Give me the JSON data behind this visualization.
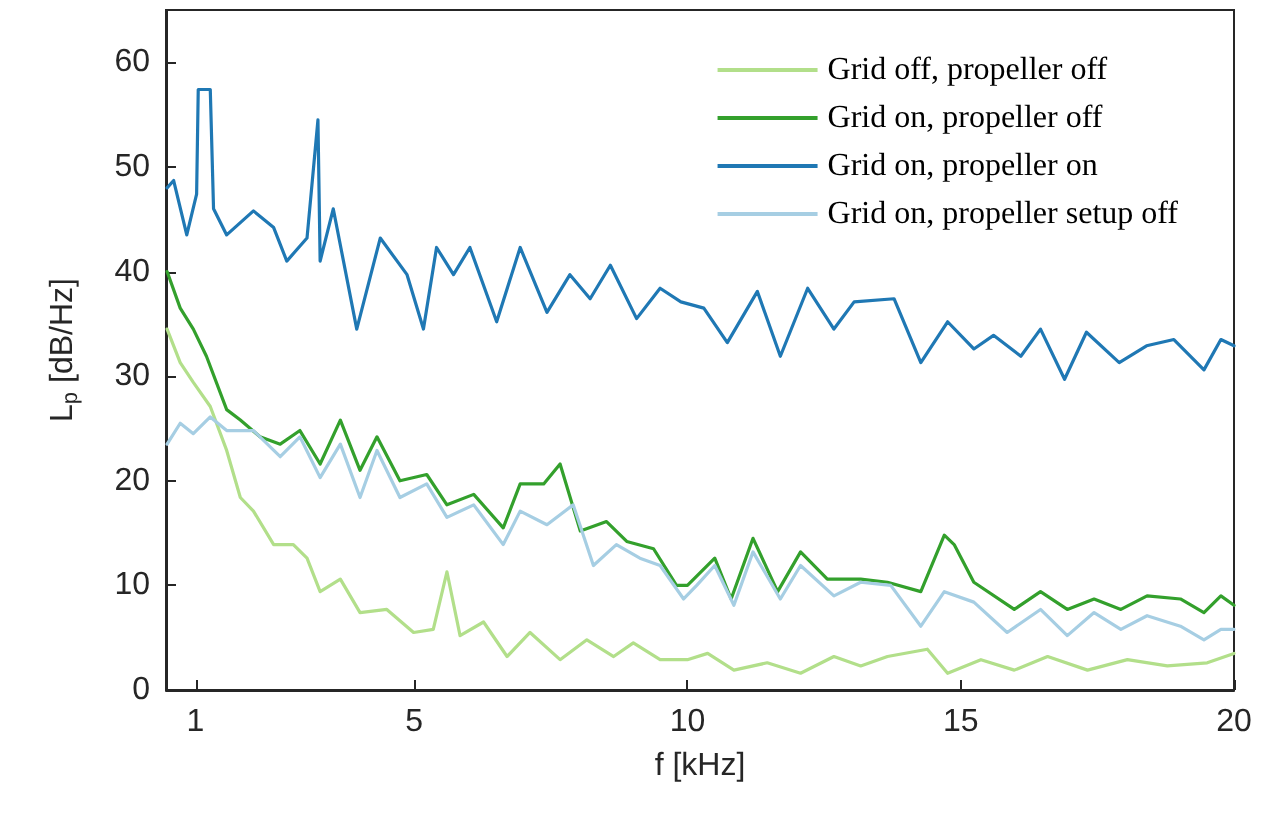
{
  "chart_data": {
    "type": "line",
    "xlabel": "f [kHz]",
    "ylabel": "L$_{p}$ [dB/Hz]",
    "xlim": [
      0.46,
      20
    ],
    "xticks": [
      1,
      5,
      10,
      15,
      20
    ],
    "ylim": [
      0,
      65
    ],
    "yticks": [
      0,
      10,
      20,
      30,
      40,
      50,
      60
    ],
    "grid": false,
    "legend": "top right",
    "marker": "none",
    "line_style": "solid",
    "series": [
      {
        "name": "Grid off, propeller off",
        "color": "#b2df8a",
        "x": [
          0.48,
          0.72,
          0.96,
          1.27,
          1.57,
          1.82,
          2.06,
          2.43,
          2.79,
          3.04,
          3.28,
          3.65,
          4.01,
          4.5,
          4.99,
          5.35,
          5.6,
          5.84,
          6.27,
          6.7,
          7.12,
          7.67,
          8.16,
          8.65,
          9.01,
          9.5,
          10,
          10.37,
          10.85,
          11.46,
          12.07,
          12.68,
          13.17,
          13.66,
          14.39,
          14.76,
          15.37,
          15.98,
          16.59,
          17.32,
          18.05,
          18.78,
          19.51,
          20
        ],
        "values": [
          34.5,
          31.3,
          29.4,
          27.1,
          22.9,
          18.4,
          17.1,
          13.9,
          13.9,
          12.6,
          9.4,
          10.6,
          7.4,
          7.7,
          5.5,
          5.8,
          11.3,
          5.2,
          6.5,
          3.2,
          5.5,
          2.9,
          4.8,
          3.2,
          4.5,
          2.9,
          2.9,
          3.5,
          1.9,
          2.6,
          1.6,
          3.2,
          2.3,
          3.2,
          3.9,
          1.6,
          2.9,
          1.9,
          3.2,
          1.9,
          2.9,
          2.3,
          2.6,
          3.5
        ]
      },
      {
        "name": "Grid on, propeller off",
        "color": "#33a02c",
        "x": [
          0.48,
          0.72,
          0.96,
          1.2,
          1.57,
          1.82,
          2.18,
          2.55,
          2.91,
          3.28,
          3.65,
          4.01,
          4.32,
          4.74,
          5.23,
          5.6,
          6.09,
          6.63,
          6.94,
          7.37,
          7.67,
          8.04,
          8.52,
          8.89,
          9.38,
          9.8,
          10,
          10.5,
          10.8,
          11.2,
          11.65,
          12.07,
          12.56,
          13.17,
          13.66,
          14.27,
          14.7,
          14.88,
          15.24,
          15.98,
          16.46,
          16.95,
          17.44,
          17.93,
          18.41,
          19.02,
          19.45,
          19.76,
          20
        ],
        "values": [
          40,
          36.5,
          34.5,
          31.9,
          26.8,
          25.8,
          24.2,
          23.5,
          24.8,
          21.6,
          25.8,
          21,
          24.2,
          20,
          20.6,
          17.7,
          18.7,
          15.5,
          19.7,
          19.7,
          21.6,
          15.2,
          16.1,
          14.2,
          13.5,
          10,
          10,
          12.6,
          8.7,
          14.5,
          9.4,
          13.2,
          10.6,
          10.6,
          10.3,
          9.4,
          14.8,
          13.9,
          10.3,
          7.7,
          9.4,
          7.7,
          8.7,
          7.7,
          9,
          8.7,
          7.4,
          9,
          8.1
        ]
      },
      {
        "name": "Grid on, propeller on",
        "color": "#1f78b4",
        "x": [
          0.48,
          0.6,
          0.84,
          1.02,
          1.05,
          1.27,
          1.33,
          1.57,
          2.06,
          2.43,
          2.67,
          3.04,
          3.24,
          3.28,
          3.52,
          3.95,
          4.38,
          4.87,
          5.17,
          5.41,
          5.72,
          6.02,
          6.51,
          6.94,
          7.43,
          7.85,
          8.22,
          8.59,
          9.07,
          9.5,
          9.88,
          10.3,
          10.73,
          11.28,
          11.7,
          12.2,
          12.68,
          13.05,
          13.78,
          14.27,
          14.76,
          15.24,
          15.6,
          16.1,
          16.46,
          16.9,
          17.3,
          17.9,
          18.4,
          18.9,
          19.45,
          19.76,
          20
        ],
        "values": [
          48,
          48.7,
          43.5,
          47.4,
          57.4,
          57.4,
          46,
          43.5,
          45.8,
          44.2,
          41,
          43.2,
          54.5,
          41,
          46,
          34.5,
          43.2,
          39.7,
          34.5,
          42.3,
          39.7,
          42.3,
          35.2,
          42.3,
          36.1,
          39.7,
          37.4,
          40.6,
          35.5,
          38.4,
          37.1,
          36.5,
          33.2,
          38.1,
          31.9,
          38.4,
          34.5,
          37.1,
          37.4,
          31.3,
          35.2,
          32.6,
          33.9,
          31.9,
          34.5,
          29.7,
          34.2,
          31.3,
          32.9,
          33.5,
          30.6,
          33.5,
          32.9
        ]
      },
      {
        "name": "Grid on, propeller setup off",
        "color": "#a6cee3",
        "x": [
          0.48,
          0.72,
          0.96,
          1.27,
          1.57,
          2.06,
          2.55,
          2.91,
          3.28,
          3.65,
          4.01,
          4.32,
          4.74,
          5.23,
          5.6,
          6.09,
          6.63,
          6.94,
          7.43,
          7.91,
          8.28,
          8.7,
          9.13,
          9.5,
          9.93,
          10.17,
          10.5,
          10.85,
          11.2,
          11.7,
          12.07,
          12.68,
          13.17,
          13.72,
          14.27,
          14.7,
          15.24,
          15.85,
          16.46,
          16.95,
          17.44,
          17.93,
          18.41,
          19.02,
          19.45,
          19.76,
          20
        ],
        "values": [
          23.5,
          25.5,
          24.5,
          26.1,
          24.8,
          24.8,
          22.3,
          24.2,
          20.3,
          23.5,
          18.4,
          22.9,
          18.4,
          19.7,
          16.5,
          17.7,
          13.9,
          17.1,
          15.8,
          17.7,
          11.9,
          13.9,
          12.6,
          11.9,
          8.7,
          10,
          11.9,
          8.1,
          13.2,
          8.7,
          11.9,
          9,
          10.3,
          10,
          6.1,
          9.4,
          8.4,
          5.5,
          7.7,
          5.2,
          7.4,
          5.8,
          7.1,
          6.1,
          4.8,
          5.8,
          5.8
        ]
      }
    ]
  }
}
